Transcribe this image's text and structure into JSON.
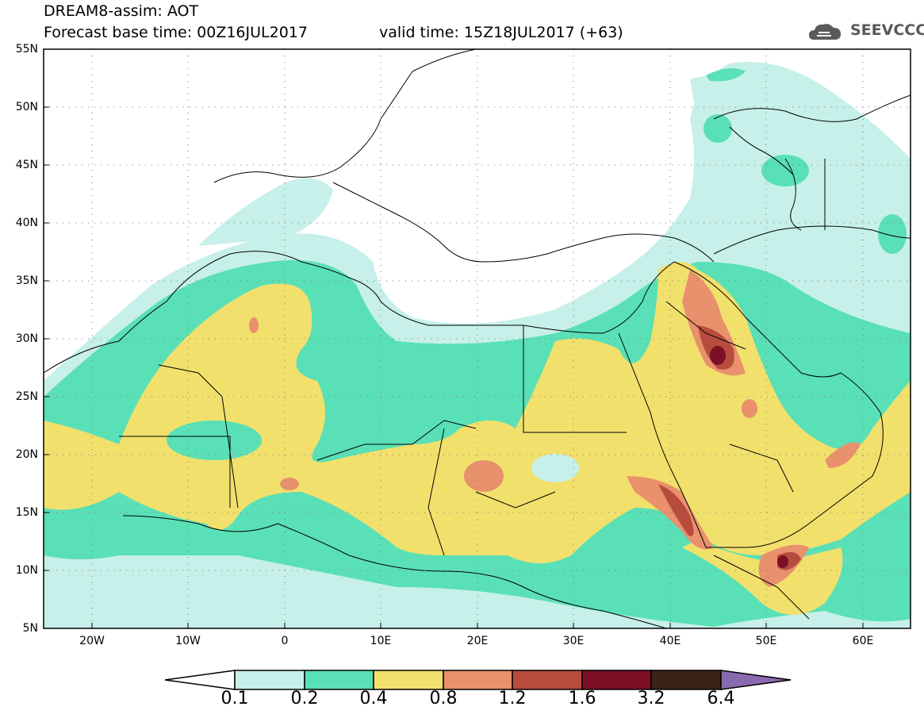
{
  "title": {
    "line1": "DREAM8-assim: AOT",
    "base_time": "Forecast base time: 00Z16JUL2017",
    "valid_time": "valid time: 15Z18JUL2017 (+63)"
  },
  "logo": {
    "text": "SEEVCCC",
    "icon": "cloud-icon"
  },
  "map": {
    "lat_labels": [
      "55N",
      "50N",
      "45N",
      "40N",
      "35N",
      "30N",
      "25N",
      "20N",
      "15N",
      "10N",
      "5N"
    ],
    "lon_labels": [
      "20W",
      "10W",
      "0",
      "10E",
      "20E",
      "30E",
      "40E",
      "50E",
      "60E"
    ],
    "lat_range": [
      5,
      55
    ],
    "lon_range": [
      -25,
      65
    ],
    "gridlines": "dotted"
  },
  "legend": {
    "levels": [
      "0.1",
      "0.2",
      "0.4",
      "0.8",
      "1.2",
      "1.6",
      "3.2",
      "6.4"
    ],
    "colors": [
      "#c6f0e9",
      "#5ae0b6",
      "#f2e06c",
      "#e8916c",
      "#b84c3c",
      "#7a0f26",
      "#3a2418",
      "#8a6aaf"
    ]
  },
  "colors": {
    "frame": "#000000",
    "land": "#ffffff",
    "coast": "#000000"
  }
}
